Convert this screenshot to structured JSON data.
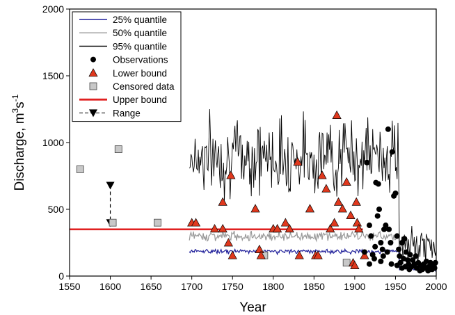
{
  "chart_data": {
    "type": "scatter",
    "xlabel": "Year",
    "ylabel_parts": [
      "Discharge, m",
      "3",
      "s",
      "-1"
    ],
    "xlim": [
      1550,
      2000
    ],
    "ylim": [
      0,
      2000
    ],
    "x_ticks": [
      1550,
      1600,
      1650,
      1700,
      1750,
      1800,
      1850,
      1900,
      1950,
      2000
    ],
    "y_ticks": [
      0,
      500,
      1000,
      1500,
      2000
    ],
    "legend_position": "top-left",
    "legend": [
      {
        "label": "25% quantile",
        "kind": "line",
        "color": "#1f1f9a"
      },
      {
        "label": "50% quantile",
        "kind": "line",
        "color": "#999999"
      },
      {
        "label": "95% quantile",
        "kind": "line",
        "color": "#000000"
      },
      {
        "label": "Observations",
        "kind": "circle",
        "color": "#000000"
      },
      {
        "label": "Lower bound",
        "kind": "triangle",
        "color": "#e0381d"
      },
      {
        "label": "Censored data",
        "kind": "square",
        "color": "#c8c8c8"
      },
      {
        "label": "Upper bound",
        "kind": "thickline",
        "color": "#e02020"
      },
      {
        "label": "Range",
        "kind": "range",
        "color": "#000000"
      }
    ],
    "upper_bound": {
      "x_start": 1550,
      "x_end": 1910,
      "y": 350
    },
    "range": {
      "x": 1600,
      "y_low": 400,
      "y_high": 680
    },
    "censored": [
      [
        1563,
        800
      ],
      [
        1603,
        400
      ],
      [
        1610,
        950
      ],
      [
        1658,
        400
      ],
      [
        1789,
        155
      ],
      [
        1890,
        100
      ]
    ],
    "lower_bound": [
      [
        1700,
        400
      ],
      [
        1705,
        400
      ],
      [
        1728,
        355
      ],
      [
        1738,
        355
      ],
      [
        1738,
        555
      ],
      [
        1745,
        250
      ],
      [
        1748,
        755
      ],
      [
        1750,
        155
      ],
      [
        1778,
        505
      ],
      [
        1783,
        200
      ],
      [
        1785,
        155
      ],
      [
        1800,
        355
      ],
      [
        1805,
        355
      ],
      [
        1815,
        400
      ],
      [
        1820,
        355
      ],
      [
        1830,
        855
      ],
      [
        1832,
        155
      ],
      [
        1845,
        505
      ],
      [
        1852,
        155
      ],
      [
        1855,
        155
      ],
      [
        1860,
        755
      ],
      [
        1865,
        655
      ],
      [
        1870,
        355
      ],
      [
        1875,
        400
      ],
      [
        1878,
        1205
      ],
      [
        1880,
        555
      ],
      [
        1885,
        505
      ],
      [
        1890,
        705
      ],
      [
        1895,
        455
      ],
      [
        1898,
        100
      ],
      [
        1900,
        80
      ],
      [
        1902,
        555
      ],
      [
        1903,
        400
      ],
      [
        1905,
        355
      ],
      [
        1912,
        155
      ]
    ],
    "observations": [
      [
        1915,
        850
      ],
      [
        1918,
        380
      ],
      [
        1920,
        300
      ],
      [
        1922,
        160
      ],
      [
        1925,
        220
      ],
      [
        1926,
        700
      ],
      [
        1928,
        450
      ],
      [
        1929,
        690
      ],
      [
        1930,
        500
      ],
      [
        1932,
        250
      ],
      [
        1934,
        200
      ],
      [
        1935,
        150
      ],
      [
        1936,
        350
      ],
      [
        1938,
        380
      ],
      [
        1940,
        180
      ],
      [
        1941,
        1100
      ],
      [
        1942,
        350
      ],
      [
        1944,
        250
      ],
      [
        1946,
        930
      ],
      [
        1948,
        600
      ],
      [
        1950,
        620
      ],
      [
        1952,
        300
      ],
      [
        1954,
        200
      ],
      [
        1955,
        150
      ],
      [
        1956,
        100
      ],
      [
        1958,
        250
      ],
      [
        1960,
        130
      ],
      [
        1961,
        280
      ],
      [
        1963,
        180
      ],
      [
        1965,
        120
      ],
      [
        1966,
        90
      ],
      [
        1968,
        160
      ],
      [
        1970,
        70
      ],
      [
        1971,
        120
      ],
      [
        1973,
        90
      ],
      [
        1975,
        150
      ],
      [
        1976,
        60
      ],
      [
        1978,
        100
      ],
      [
        1980,
        40
      ],
      [
        1981,
        80
      ],
      [
        1983,
        50
      ],
      [
        1985,
        90
      ],
      [
        1986,
        60
      ],
      [
        1988,
        110
      ],
      [
        1990,
        40
      ],
      [
        1991,
        70
      ],
      [
        1993,
        100
      ],
      [
        1995,
        50
      ],
      [
        1996,
        80
      ],
      [
        1998,
        60
      ],
      [
        1999,
        100
      ],
      [
        1912,
        180
      ],
      [
        1918,
        90
      ],
      [
        1924,
        130
      ],
      [
        1932,
        110
      ],
      [
        1945,
        90
      ],
      [
        1952,
        80
      ],
      [
        1958,
        60
      ],
      [
        1962,
        70
      ],
      [
        1967,
        50
      ]
    ],
    "quantile_model": {
      "x_start": 1697,
      "x_end": 2000,
      "step": 1,
      "break_year": 1955,
      "seed": 7,
      "q25": {
        "mean_early": 185,
        "amp_early": 22,
        "mean_late": 55,
        "amp_late": 20
      },
      "q50": {
        "mean_early": 300,
        "amp_early": 45,
        "mean_late": 85,
        "amp_late": 35
      },
      "q95": {
        "mean_early": 900,
        "amp_early": 380,
        "mean_late": 220,
        "amp_late": 180
      }
    }
  }
}
